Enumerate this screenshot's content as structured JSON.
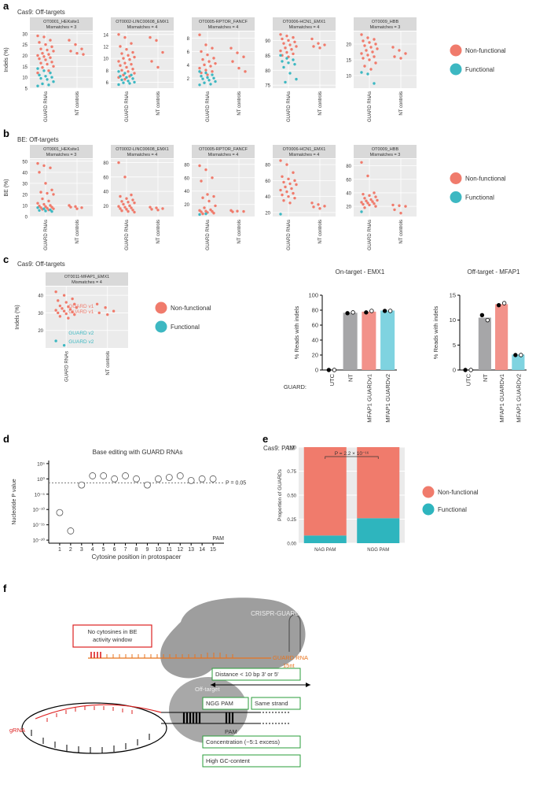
{
  "panel_labels": [
    "a",
    "b",
    "c",
    "d",
    "e",
    "f"
  ],
  "chart_data": [
    {
      "type": "strip",
      "title": "Cas9: Off-targets",
      "y_label": "Indels (%)",
      "categories": [
        "GUARD RNAs",
        "NT controls"
      ],
      "grid": true,
      "legend": "right",
      "series": [
        {
          "name": "Non-functional",
          "color": "#F07B6C"
        },
        {
          "name": "Functional",
          "color": "#3DB8C2"
        }
      ],
      "facets": [
        {
          "title": "OT0001_HEKsite1",
          "subtitle": "Mismatches = 3",
          "ylim": [
            5,
            31
          ],
          "yticks": [
            5,
            10,
            15,
            20,
            25,
            30
          ],
          "values": [
            [
              [
                29,
                28.5,
                27,
                26,
                25,
                24,
                23,
                22.5,
                22,
                21,
                20.5,
                20,
                19.5,
                19,
                18.5,
                18,
                17,
                16.5,
                16,
                15,
                14.5,
                13,
                12
              ],
              [
                27,
                25,
                23,
                22,
                21,
                20.5
              ]
            ],
            [
              [
                14,
                13,
                12,
                11,
                10.5,
                10,
                9.5,
                9,
                8,
                7,
                6.5,
                6
              ],
              []
            ]
          ]
        },
        {
          "title": "OT0002-LINC00608_EMX1",
          "subtitle": "Mismatches = 4",
          "ylim": [
            5,
            14.5
          ],
          "yticks": [
            6,
            8,
            10,
            12,
            14
          ],
          "values": [
            [
              [
                14,
                13.5,
                12.5,
                12,
                11.5,
                11,
                10.8,
                10.5,
                10.2,
                10,
                9.8,
                9.5,
                9.2,
                9,
                8.8,
                8.5,
                8.2,
                8,
                7.8,
                7.5,
                7.2,
                7,
                6.8,
                6.5
              ],
              [
                13.5,
                13,
                11,
                9.5,
                8.5
              ]
            ],
            [
              [
                7.8,
                7.5,
                7.2,
                7,
                6.8,
                6.6,
                6.4,
                6.2,
                6,
                5.9,
                5.8,
                5.6
              ],
              []
            ]
          ]
        },
        {
          "title": "OT0005-RPTOR_FANCF",
          "subtitle": "Mismatches = 4",
          "ylim": [
            0.5,
            9
          ],
          "yticks": [
            2,
            4,
            6,
            8
          ],
          "values": [
            [
              [
                8.5,
                7,
                6.5,
                6,
                5.5,
                5,
                4.8,
                4.5,
                4.2,
                4,
                3.8,
                3.5,
                3.2,
                3,
                2.8,
                2.5
              ],
              [
                6.5,
                5.8,
                5.2,
                4.5,
                3.5,
                3
              ]
            ],
            [
              [
                3,
                2.8,
                2.5,
                2.3,
                2.1,
                2,
                1.9,
                1.7,
                1.5,
                1.3,
                1.1,
                1
              ],
              []
            ]
          ]
        },
        {
          "title": "OT0006-HCN1_EMX1",
          "subtitle": "Mismatches = 4",
          "ylim": [
            74,
            93
          ],
          "yticks": [
            75,
            80,
            85,
            90
          ],
          "values": [
            [
              [
                92,
                91.5,
                91,
                90.5,
                90,
                89.5,
                89,
                88.5,
                88,
                87.5,
                87,
                86.5,
                86,
                85.5,
                85,
                84.5
              ],
              [
                90.5,
                89,
                88.5,
                88,
                87.5
              ]
            ],
            [
              [
                85,
                84,
                83.5,
                83,
                82.5,
                82,
                81,
                79,
                77,
                76
              ],
              []
            ]
          ]
        },
        {
          "title": "OT0009_HBB",
          "subtitle": "Mismatches = 3",
          "ylim": [
            6,
            24
          ],
          "yticks": [
            10,
            15,
            20
          ],
          "values": [
            [
              [
                23,
                22,
                21.5,
                21,
                20.5,
                20,
                19.5,
                19,
                18.5,
                18,
                17.5,
                17,
                16.5,
                16,
                15.5,
                15,
                14,
                13,
                12
              ],
              [
                19,
                18,
                17,
                16,
                15.5
              ]
            ],
            [
              [
                11,
                10.5,
                7.5
              ],
              []
            ]
          ]
        }
      ]
    },
    {
      "type": "strip",
      "title": "BE: Off-targets",
      "y_label": "BE (%)",
      "categories": [
        "GUARD RNAs",
        "NT controls"
      ],
      "grid": true,
      "legend": "right",
      "series": [
        {
          "name": "Non-functional",
          "color": "#F07B6C"
        },
        {
          "name": "Functional",
          "color": "#3DB8C2"
        }
      ],
      "facets": [
        {
          "title": "OT0001_HEKsite1",
          "subtitle": "Mismatches = 3",
          "ylim": [
            0,
            52
          ],
          "yticks": [
            0,
            10,
            20,
            30,
            40,
            50
          ],
          "values": [
            [
              [
                48,
                46,
                44,
                40,
                30,
                24,
                22,
                21,
                20,
                16,
                14,
                12,
                11,
                10,
                9.5,
                9,
                8.5,
                8,
                7.5,
                7,
                6.5,
                6
              ],
              [
                10,
                9,
                8,
                8.5,
                7
              ]
            ],
            [
              [
                8,
                7,
                6,
                5.5,
                5,
                4.5
              ],
              []
            ]
          ]
        },
        {
          "title": "OT0002-LINC00608_EMX1",
          "subtitle": "Mismatches = 4",
          "ylim": [
            5,
            85
          ],
          "yticks": [
            20,
            40,
            60,
            80
          ],
          "values": [
            [
              [
                80,
                60,
                35,
                33,
                30,
                28,
                26,
                25,
                24,
                22,
                20,
                19,
                18,
                17,
                16,
                15,
                14,
                13,
                12,
                11
              ],
              [
                18,
                17,
                16,
                15,
                14
              ]
            ],
            [
              [],
              []
            ]
          ]
        },
        {
          "title": "OT0005-RPTOR_FANCF",
          "subtitle": "Mismatches = 4",
          "ylim": [
            2,
            88
          ],
          "yticks": [
            20,
            40,
            60,
            80
          ],
          "values": [
            [
              [
                78,
                72,
                60,
                55,
                35,
                32,
                30,
                25,
                18,
                15,
                12,
                11,
                10,
                9.5,
                9,
                8,
                7,
                6
              ],
              [
                11,
                10,
                9.5,
                9
              ]
            ],
            [
              [
                5,
                6
              ],
              []
            ]
          ]
        },
        {
          "title": "OT0006-HCN1_EMX1",
          "subtitle": "Mismatches = 4",
          "ylim": [
            15,
            87
          ],
          "yticks": [
            20,
            40,
            60,
            80
          ],
          "values": [
            [
              [
                85,
                80,
                70,
                65,
                62,
                60,
                58,
                56,
                55,
                52,
                50,
                48,
                46,
                44,
                42,
                40,
                38,
                35,
                32
              ],
              [
                32,
                30,
                28,
                27,
                25
              ]
            ],
            [
              [
                18
              ],
              []
            ]
          ]
        },
        {
          "title": "OT0009_HBB",
          "subtitle": "Mismatches = 3",
          "ylim": [
            5,
            90
          ],
          "yticks": [
            20,
            40,
            60,
            80
          ],
          "values": [
            [
              [
                85,
                65,
                40,
                38,
                36,
                34,
                32,
                30,
                29,
                28,
                27,
                26,
                25,
                24,
                23,
                22,
                20,
                18
              ],
              [
                22,
                21,
                20,
                15,
                10
              ]
            ],
            [
              [
                12
              ],
              []
            ]
          ]
        }
      ]
    },
    {
      "type": "strip",
      "title": "Cas9: Off-targets",
      "y_label": "Indels (%)",
      "categories": [
        "GUARD RNAs",
        "NT controls"
      ],
      "grid": true,
      "legend": "right",
      "series": [
        {
          "name": "Non-functional",
          "color": "#F07B6C"
        },
        {
          "name": "Functional",
          "color": "#3DB8C2"
        }
      ],
      "annotations": [
        "GUARD v1",
        "GUARD v1",
        "GUARD v2",
        "GUARD v2"
      ],
      "facets": [
        {
          "title": "OT0011-MFAP1_EMX1",
          "subtitle": "Mismatches = 4",
          "ylim": [
            10,
            45
          ],
          "yticks": [
            20,
            30,
            40
          ],
          "values": [
            [
              [
                42,
                40,
                38,
                37,
                36,
                35,
                34,
                33.5,
                33,
                32.5,
                32,
                31.5,
                31,
                30.5,
                30,
                29.5,
                29,
                28,
                27
              ],
              [
                35,
                33,
                31,
                30,
                29
              ]
            ],
            [
              [
                14,
                11.5
              ],
              []
            ]
          ]
        }
      ]
    },
    {
      "type": "bar",
      "title": "On-target - EMX1",
      "y_label": "% Reads with indels",
      "x_prefix": "GUARD:",
      "categories": [
        "UTC",
        "NT",
        "MFAP1 GUARDv1",
        "MFAP1 GUARDv2"
      ],
      "values": [
        0,
        76.5,
        78,
        79.5
      ],
      "colors": [
        "#A6A6A8",
        "#A6A6A8",
        "#F2928A",
        "#7FD3E0"
      ],
      "points": [
        [
          0,
          0
        ],
        [
          76,
          77
        ],
        [
          77,
          79
        ],
        [
          79,
          79
        ]
      ],
      "ylim": [
        0,
        100
      ],
      "yticks": [
        0,
        20,
        40,
        60,
        80,
        100
      ]
    },
    {
      "type": "bar",
      "title": "Off-target - MFAP1",
      "y_label": "% Reads with indels",
      "categories": [
        "UTC",
        "NT",
        "MFAP1 GUARDv1",
        "MFAP1 GUARDv2"
      ],
      "values": [
        0,
        10.5,
        13.2,
        3.1
      ],
      "colors": [
        "#A6A6A8",
        "#A6A6A8",
        "#F2928A",
        "#7FD3E0"
      ],
      "points": [
        [
          0,
          0
        ],
        [
          11,
          10
        ],
        [
          13,
          13.4
        ],
        [
          3,
          3
        ]
      ],
      "ylim": [
        0,
        15
      ],
      "yticks": [
        0,
        5,
        10,
        15
      ]
    },
    {
      "type": "scatter",
      "title": "Base editing with GUARD RNAs",
      "y_label": "Nucleotide P value",
      "x_label": "Cytosine position in protospacer",
      "x_end_label": "PAM",
      "log_y": true,
      "x": [
        1,
        2,
        3,
        4,
        5,
        6,
        7,
        8,
        9,
        10,
        11,
        12,
        13,
        14,
        15
      ],
      "values": [
        1e-11,
        1e-17,
        0.01,
        10,
        10,
        1,
        10,
        1,
        0.01,
        1,
        3,
        10,
        0.3,
        1,
        1
      ],
      "xlim": [
        0,
        16
      ],
      "xticks": [
        1,
        2,
        3,
        4,
        5,
        6,
        7,
        8,
        9,
        10,
        11,
        12,
        13,
        14,
        15
      ],
      "ylim": [
        1e-21,
        1000000.0
      ],
      "yticks": [
        {
          "value": 1e-20,
          "label": "10⁻²⁰"
        },
        {
          "value": 1e-15,
          "label": "10⁻¹⁵"
        },
        {
          "value": 1e-10,
          "label": "10⁻¹⁰"
        },
        {
          "value": 1e-05,
          "label": "10⁻⁵"
        },
        {
          "value": 1,
          "label": "10⁰"
        },
        {
          "value": 100000.0,
          "label": "10⁵"
        }
      ],
      "threshold": {
        "value": 0.05,
        "label": "P = 0.05"
      }
    },
    {
      "type": "stacked_bar",
      "title": "Cas9: PAM",
      "y_label": "Proportion of GUARDs",
      "categories": [
        "NAG PAM",
        "NGG PAM"
      ],
      "legend": "right",
      "grid": true,
      "series": [
        {
          "name": "Non-functional",
          "color": "#F07B6C",
          "values": [
            0.92,
            0.74
          ]
        },
        {
          "name": "Functional",
          "color": "#2EB5BE",
          "values": [
            0.08,
            0.26
          ]
        }
      ],
      "ylim": [
        0,
        1
      ],
      "yticks": [
        {
          "value": 0,
          "label": "0.00"
        },
        {
          "value": 0.25,
          "label": "0.25"
        },
        {
          "value": 0.5,
          "label": "0.50"
        },
        {
          "value": 0.75,
          "label": "0.75"
        },
        {
          "value": 1,
          "label": "1.00"
        }
      ],
      "annotation": "P = 2.2 × 10⁻¹⁶"
    }
  ],
  "diagram": {
    "complex": "CRISPR-GUARD",
    "window_note": [
      "No cytosines in BE",
      "activity window"
    ],
    "guard_rna": [
      "GUARD RNA",
      "15nt"
    ],
    "off_target": "Off-target",
    "grna": "gRNA",
    "distance": "Distance < 10 bp 3′ or 5′",
    "pam_type": "NGG PAM",
    "strand": "Same strand",
    "pam": "PAM",
    "concentration": "Concentration (~5:1 excess)",
    "gc": "High GC-content"
  }
}
